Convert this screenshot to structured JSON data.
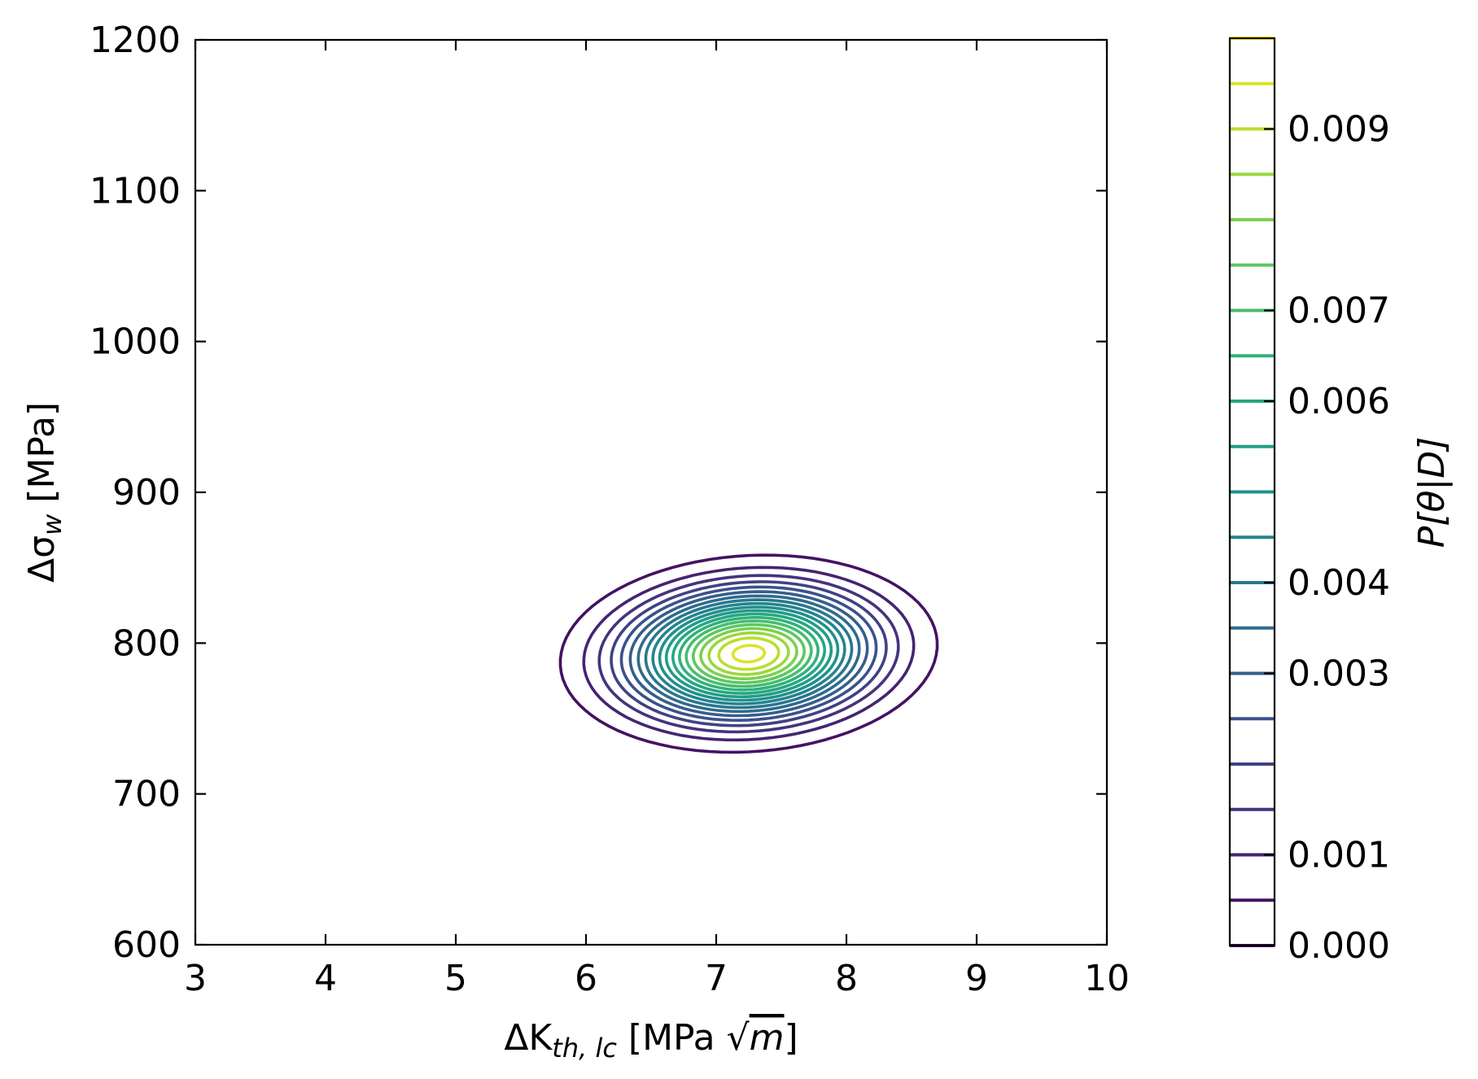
{
  "chart_data": {
    "type": "contour",
    "x_label": {
      "main": "ΔK",
      "sub": "th, lc",
      "tail": " [MPa ",
      "root": "√",
      "radicand": "m",
      "close": "]"
    },
    "y_label": {
      "main": "Δσ",
      "sub": "w",
      "tail": " [MPa]"
    },
    "colorbar_label": "P[θ|D]",
    "xlim": [
      3,
      10
    ],
    "ylim": [
      600,
      1200
    ],
    "xticks": [
      3,
      4,
      5,
      6,
      7,
      8,
      9,
      10
    ],
    "xtick_labels": [
      "3",
      "4",
      "5",
      "6",
      "7",
      "8",
      "9",
      "10"
    ],
    "yticks": [
      600,
      700,
      800,
      900,
      1000,
      1100,
      1200
    ],
    "ytick_labels": [
      "600",
      "700",
      "800",
      "900",
      "1000",
      "1100",
      "1200"
    ],
    "grid": false,
    "colormap": "viridis",
    "colorbar": {
      "min": 0.0,
      "max": 0.01,
      "level_step": 0.0005,
      "n_levels": 21,
      "ticks": [
        0.0,
        0.001,
        0.003,
        0.004,
        0.006,
        0.007,
        0.009
      ],
      "tick_labels": [
        "0.000",
        "0.001",
        "0.003",
        "0.004",
        "0.006",
        "0.007",
        "0.009"
      ]
    },
    "distribution": {
      "peak_x": 7.25,
      "peak_y": 793,
      "peak_density": 0.0097,
      "outer_contour_x_range": [
        5.8,
        8.7
      ],
      "outer_contour_y_range": [
        730,
        860
      ]
    }
  }
}
